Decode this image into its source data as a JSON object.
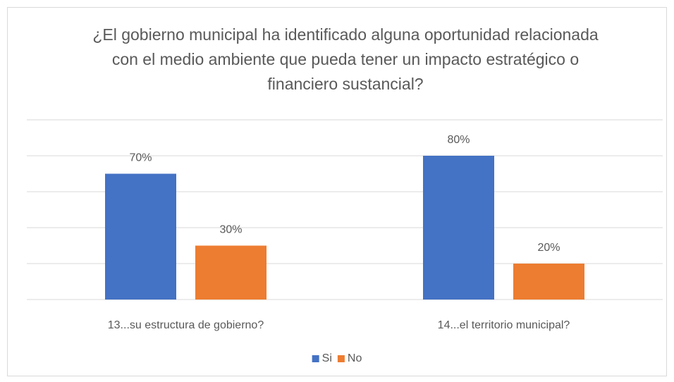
{
  "chart_data": {
    "type": "bar",
    "title": "¿El gobierno municipal ha identificado alguna oportunidad relacionada con el medio ambiente que pueda tener un impacto estratégico o financiero sustancial?",
    "categories": [
      "13...su estructura de gobierno?",
      "14...el territorio municipal?"
    ],
    "series": [
      {
        "name": "Si",
        "color": "#4472c4",
        "values": [
          70,
          80
        ],
        "value_labels": [
          "70%",
          "80%"
        ]
      },
      {
        "name": "No",
        "color": "#ed7d31",
        "values": [
          30,
          20
        ],
        "value_labels": [
          "30%",
          "20%"
        ]
      }
    ],
    "ylim": [
      0,
      100
    ],
    "yticks": [
      0,
      20,
      40,
      60,
      80,
      100
    ],
    "grid": true,
    "legend": "bottom"
  }
}
